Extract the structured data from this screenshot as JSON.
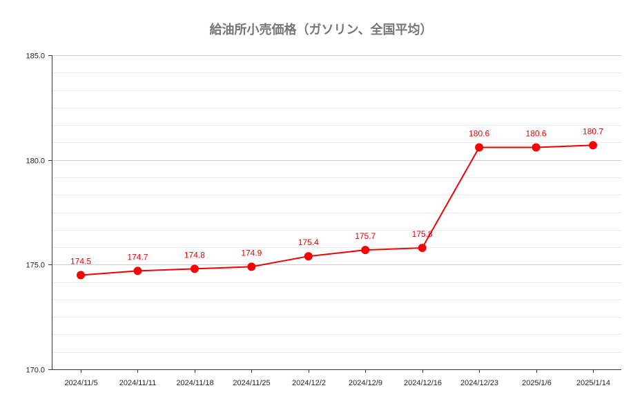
{
  "chart_data": {
    "type": "line",
    "title": "給油所小売価格（ガソリン、全国平均）",
    "xlabel": "",
    "ylabel": "",
    "categories": [
      "2024/11/5",
      "2024/11/11",
      "2024/11/18",
      "2024/11/25",
      "2024/12/2",
      "2024/12/9",
      "2024/12/16",
      "2024/12/23",
      "2025/1/6",
      "2025/1/14"
    ],
    "series": [
      {
        "values": [
          174.5,
          174.7,
          174.8,
          174.9,
          175.4,
          175.7,
          175.8,
          180.6,
          180.6,
          180.7
        ],
        "labels": [
          "174.5",
          "174.7",
          "174.8",
          "174.9",
          "175.4",
          "175.7",
          "175.8",
          "180.6",
          "180.6",
          "180.7"
        ],
        "color": "#ff0000"
      }
    ],
    "ylim": [
      170,
      185
    ],
    "yticks": [
      170,
      175,
      180,
      185
    ],
    "ytick_labels": [
      "170.0",
      "175.0",
      "180.0",
      "185.0"
    ],
    "minor_grid_step": 0.833,
    "grid": true,
    "legend": "none"
  }
}
